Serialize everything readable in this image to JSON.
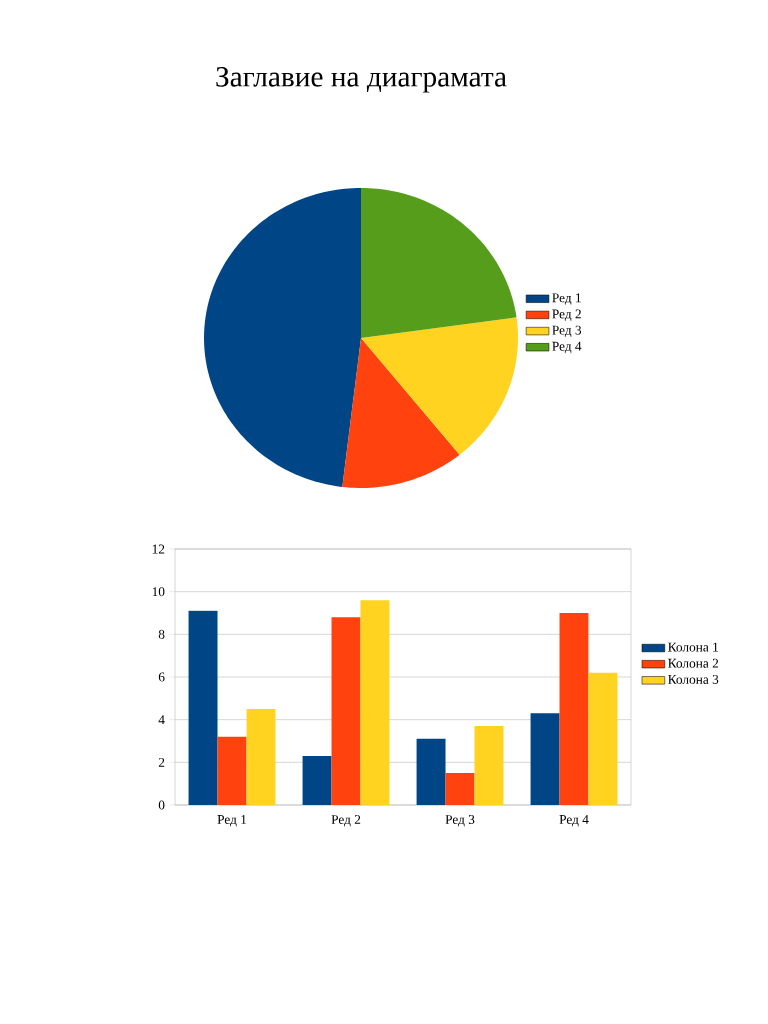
{
  "chart_data": [
    {
      "type": "pie",
      "title": "Заглавие на диаграмата",
      "categories": [
        "Ред 1",
        "Ред 2",
        "Ред 3",
        "Ред 4"
      ],
      "values": [
        48.1,
        12.7,
        16.4,
        22.8
      ],
      "colors": [
        "#004586",
        "#ff420e",
        "#ffd320",
        "#579d1c"
      ],
      "legend": "right"
    },
    {
      "type": "bar",
      "categories": [
        "Ред 1",
        "Ред 2",
        "Ред 3",
        "Ред 4"
      ],
      "series": [
        {
          "name": "Колона 1",
          "color": "#004586",
          "values": [
            9.1,
            2.3,
            3.1,
            4.3
          ]
        },
        {
          "name": "Колона 2",
          "color": "#ff420e",
          "values": [
            3.2,
            8.8,
            1.5,
            9.0
          ]
        },
        {
          "name": "Колона 3",
          "color": "#ffd320",
          "values": [
            4.5,
            9.6,
            3.7,
            6.2
          ]
        }
      ],
      "ylim": [
        0,
        12
      ],
      "yticks": [
        0,
        2,
        4,
        6,
        8,
        10,
        12
      ],
      "grid": "y",
      "legend": "right"
    }
  ]
}
